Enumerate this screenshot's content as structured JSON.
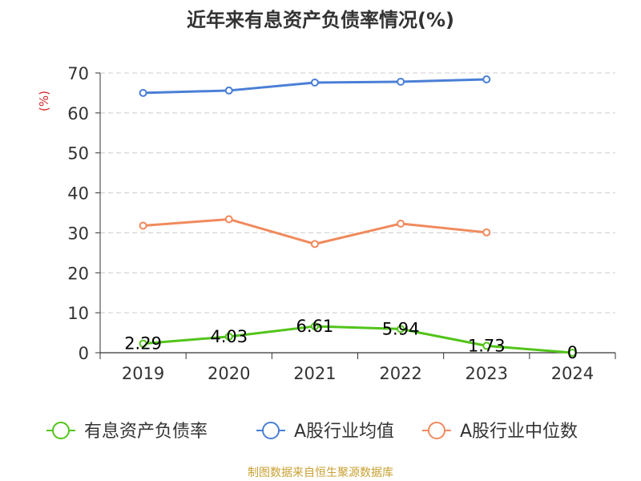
{
  "chart_data": {
    "type": "line",
    "title": "近年来有息资产负债率情况(%)",
    "ylabel": "(%)",
    "xlabel": "",
    "categories": [
      "2019",
      "2020",
      "2021",
      "2022",
      "2023",
      "2024"
    ],
    "ylim": [
      0,
      70
    ],
    "yticks": [
      0,
      10,
      20,
      30,
      40,
      50,
      60,
      70
    ],
    "grid": true,
    "legend_position": "bottom",
    "series": [
      {
        "name": "有息资产负债率",
        "color": "#52c41a",
        "values": [
          2.29,
          4.03,
          6.61,
          5.94,
          1.73,
          0
        ],
        "labels": [
          "2.29",
          "4.03",
          "6.61",
          "5.94",
          "1.73",
          "0"
        ]
      },
      {
        "name": "A股行业均值",
        "color": "#4a7fd6",
        "values": [
          65.0,
          65.6,
          67.6,
          67.8,
          68.4,
          null
        ]
      },
      {
        "name": "A股行业中位数",
        "color": "#f08a5d",
        "values": [
          31.8,
          33.4,
          27.2,
          32.3,
          30.1,
          null
        ]
      }
    ]
  },
  "source": "制图数据来自恒生聚源数据库"
}
